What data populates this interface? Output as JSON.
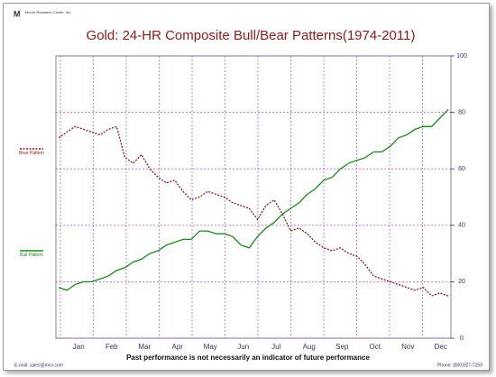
{
  "header": {
    "logo": "Moore Research Center, Inc."
  },
  "chart_data": {
    "type": "line",
    "title": "Gold: 24-HR Composite Bull/Bear Patterns(1974-2011)",
    "x_labels": [
      "Jan",
      "Feb",
      "Mar",
      "Apr",
      "May",
      "Jun",
      "Jul",
      "Aug",
      "Sep",
      "Oct",
      "Nov",
      "Dec"
    ],
    "ylim": [
      0,
      100
    ],
    "yticks": [
      0,
      20,
      40,
      60,
      80,
      100
    ],
    "grid": true,
    "series": [
      {
        "name": "Bear Pattern",
        "color": "#8b1a1a",
        "dashed": true,
        "values": [
          71,
          73,
          75,
          74,
          73,
          72,
          74,
          75,
          64,
          62,
          65,
          60,
          57,
          55,
          56,
          52,
          49,
          50,
          52,
          51,
          50,
          48,
          47,
          46,
          42,
          47,
          49,
          44,
          38,
          39,
          37,
          34,
          32,
          31,
          32,
          30,
          29,
          26,
          22,
          21,
          20,
          19,
          18,
          17,
          18,
          15,
          16,
          15
        ]
      },
      {
        "name": "Bull Pattern",
        "color": "#1a8a1a",
        "dashed": false,
        "values": [
          18,
          17,
          19,
          20,
          20,
          21,
          22,
          24,
          25,
          27,
          28,
          30,
          31,
          33,
          34,
          35,
          35,
          38,
          38,
          37,
          37,
          36,
          33,
          32,
          36,
          39,
          41,
          44,
          46,
          48,
          51,
          53,
          56,
          57,
          60,
          62,
          63,
          64,
          66,
          66,
          68,
          71,
          72,
          74,
          75,
          75,
          78,
          81
        ]
      }
    ]
  },
  "footer": {
    "disclaimer": "Past performance is not necessarily an indicator of future performance",
    "email": "E-mail: sales@mrci.com",
    "phone": "Phone: (800)927-7259"
  }
}
